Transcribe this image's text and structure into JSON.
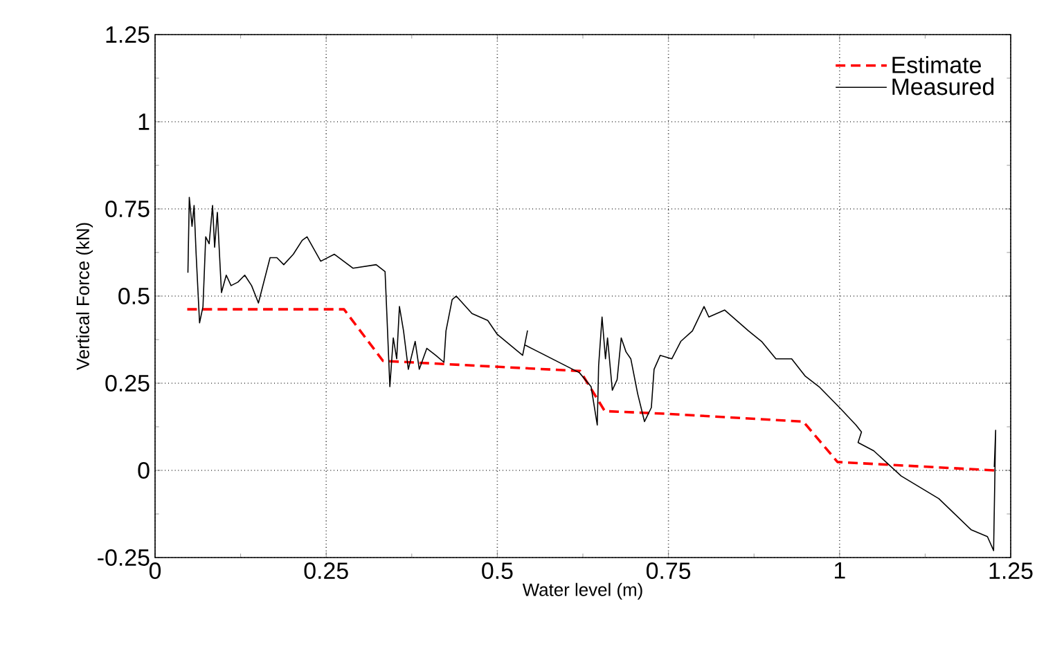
{
  "chart_data": {
    "type": "line",
    "xlabel": "Water level (m)",
    "ylabel": "Vertical Force (kN)",
    "xlim": [
      0,
      1.25
    ],
    "ylim": [
      -0.25,
      1.25
    ],
    "xticks": [
      0,
      0.25,
      0.5,
      0.75,
      1,
      1.25
    ],
    "yticks": [
      -0.25,
      0,
      0.25,
      0.5,
      0.75,
      1,
      1.25
    ],
    "grid": true,
    "legend": "top right",
    "series": [
      {
        "name": "Estimate",
        "color": "#ff0000",
        "line_style": "dashed",
        "x": [
          0.047,
          0.276,
          0.333,
          0.621,
          0.657,
          0.75,
          0.947,
          0.997,
          1.226
        ],
        "values": [
          0.462,
          0.462,
          0.314,
          0.285,
          0.17,
          0.162,
          0.14,
          0.024,
          0.0
        ]
      },
      {
        "name": "Measured",
        "color": "#000000",
        "line_style": "solid",
        "x": [
          0.048,
          0.05,
          0.054,
          0.057,
          0.06,
          0.065,
          0.07,
          0.074,
          0.079,
          0.084,
          0.087,
          0.091,
          0.097,
          0.104,
          0.111,
          0.121,
          0.131,
          0.141,
          0.151,
          0.168,
          0.178,
          0.188,
          0.202,
          0.215,
          0.222,
          0.242,
          0.262,
          0.289,
          0.323,
          0.336,
          0.339,
          0.343,
          0.348,
          0.353,
          0.357,
          0.363,
          0.37,
          0.38,
          0.386,
          0.397,
          0.41,
          0.422,
          0.425,
          0.434,
          0.44,
          0.463,
          0.486,
          0.5,
          0.537,
          0.544,
          0.54,
          0.56,
          0.62,
          0.637,
          0.646,
          0.648,
          0.653,
          0.658,
          0.661,
          0.668,
          0.675,
          0.681,
          0.688,
          0.695,
          0.705,
          0.715,
          0.725,
          0.729,
          0.738,
          0.755,
          0.768,
          0.785,
          0.802,
          0.809,
          0.832,
          0.867,
          0.886,
          0.907,
          0.93,
          0.95,
          0.97,
          1.0,
          1.024,
          1.032,
          1.027,
          1.05,
          1.09,
          1.145,
          1.192,
          1.216,
          1.225,
          1.228,
          1.226
        ],
        "values": [
          0.567,
          0.783,
          0.7,
          0.76,
          0.62,
          0.423,
          0.47,
          0.67,
          0.65,
          0.76,
          0.64,
          0.74,
          0.51,
          0.56,
          0.53,
          0.54,
          0.56,
          0.53,
          0.48,
          0.61,
          0.61,
          0.59,
          0.62,
          0.66,
          0.67,
          0.6,
          0.62,
          0.58,
          0.59,
          0.57,
          0.43,
          0.24,
          0.38,
          0.32,
          0.47,
          0.4,
          0.29,
          0.37,
          0.29,
          0.35,
          0.33,
          0.31,
          0.4,
          0.49,
          0.5,
          0.45,
          0.43,
          0.39,
          0.33,
          0.4,
          0.36,
          0.34,
          0.28,
          0.24,
          0.13,
          0.3,
          0.44,
          0.32,
          0.38,
          0.23,
          0.26,
          0.38,
          0.34,
          0.32,
          0.22,
          0.14,
          0.18,
          0.29,
          0.33,
          0.32,
          0.37,
          0.4,
          0.47,
          0.44,
          0.46,
          0.4,
          0.37,
          0.32,
          0.32,
          0.27,
          0.24,
          0.18,
          0.13,
          0.11,
          0.08,
          0.056,
          -0.016,
          -0.081,
          -0.17,
          -0.19,
          -0.23,
          0.115,
          0.01
        ]
      }
    ]
  }
}
